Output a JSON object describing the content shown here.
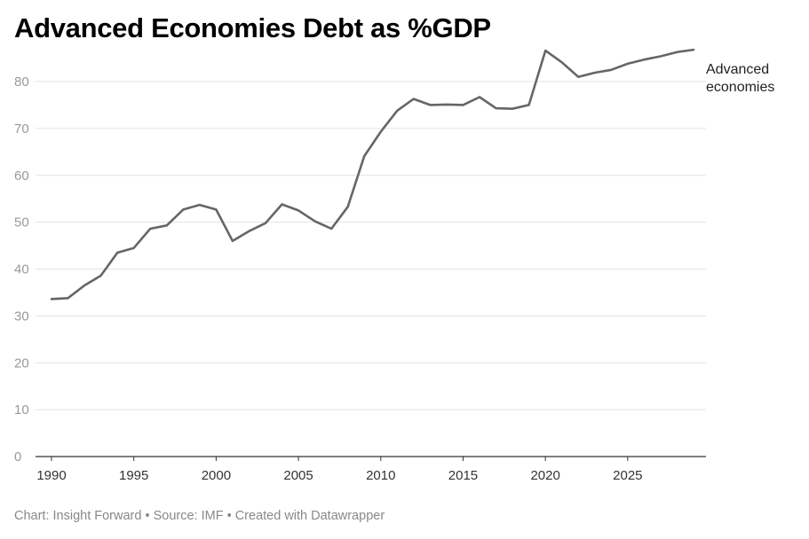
{
  "header": {
    "title": "Advanced Economies Debt as %GDP"
  },
  "footer": {
    "credit": "Chart: Insight Forward",
    "source": "Source: IMF",
    "tool": "Created with Datawrapper",
    "separator": "•"
  },
  "chart_data": {
    "type": "line",
    "title": "Advanced Economies Debt as %GDP",
    "xlabel": "",
    "ylabel": "",
    "xlim": [
      1990,
      2029
    ],
    "ylim": [
      0,
      87
    ],
    "y_ticks": [
      0,
      10,
      20,
      30,
      40,
      50,
      60,
      70,
      80
    ],
    "x_ticks": [
      1990,
      1995,
      2000,
      2005,
      2010,
      2015,
      2020,
      2025
    ],
    "grid": "horizontal",
    "line_color": "#666666",
    "series": [
      {
        "label_lines": [
          "Advanced",
          "economies"
        ],
        "x": [
          1990,
          1991,
          1992,
          1993,
          1994,
          1995,
          1996,
          1997,
          1998,
          1999,
          2000,
          2001,
          2002,
          2003,
          2004,
          2005,
          2006,
          2007,
          2008,
          2009,
          2010,
          2011,
          2012,
          2013,
          2014,
          2015,
          2016,
          2017,
          2018,
          2019,
          2020,
          2021,
          2022,
          2023,
          2024,
          2025,
          2026,
          2027,
          2028,
          2029
        ],
        "values": [
          33.6,
          33.8,
          36.5,
          38.6,
          43.5,
          44.5,
          48.6,
          49.3,
          52.7,
          53.7,
          52.7,
          46.0,
          48.1,
          49.8,
          53.8,
          52.5,
          50.2,
          48.6,
          53.3,
          64.1,
          69.3,
          73.8,
          76.3,
          75.0,
          75.1,
          75.0,
          76.7,
          74.3,
          74.2,
          75.0,
          86.6,
          84.1,
          81.0,
          81.9,
          82.5,
          83.8,
          84.7,
          85.4,
          86.3,
          86.8
        ]
      }
    ]
  }
}
